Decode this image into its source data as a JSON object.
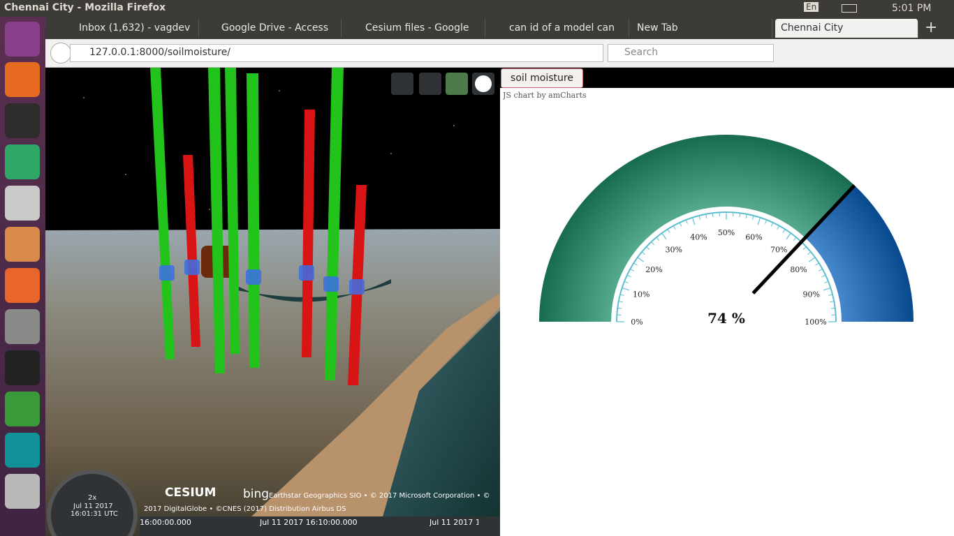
{
  "window": {
    "title": "Chennai City - Mozilla Firefox",
    "keyboard": "En",
    "clock": "5:01 PM"
  },
  "tabs": [
    "Inbox (1,632) - vagdev",
    "Google Drive - Access",
    "Cesium files - Google",
    "can id of a model can",
    "New Tab",
    "Chennai City"
  ],
  "navbar": {
    "url": "127.0.0.1:8000/soilmoisture/",
    "search": "Search"
  },
  "viewer": {
    "logo": "CESIUM",
    "bing": "bing",
    "credits": [
      "Earthstar Geographics SIO • © 2017 Microsoft Corporation • ©",
      "2017 DigitalGlobe • ©CNES (2017) Distribution Airbus DS"
    ],
    "animation": {
      "speed": "2x",
      "date": "Jul 11 2017",
      "time": "16:01:31 UTC"
    },
    "timeline": [
      "16:00:00.000",
      "Jul 11 2017 16:10:00.000",
      "Jul 11 2017 1"
    ]
  },
  "panel": {
    "button": "soil moisture",
    "credit": "JS chart by amCharts"
  },
  "gauge": {
    "type": "gauge",
    "value": 74,
    "value_label": "74 %",
    "range": [
      0,
      100
    ],
    "ticks": [
      {
        "value": 0,
        "label": "0%"
      },
      {
        "value": 10,
        "label": "10%"
      },
      {
        "value": 20,
        "label": "20%"
      },
      {
        "value": 30,
        "label": "30%"
      },
      {
        "value": 40,
        "label": "40%"
      },
      {
        "value": 50,
        "label": "50%"
      },
      {
        "value": 60,
        "label": "60%"
      },
      {
        "value": 70,
        "label": "70%"
      },
      {
        "value": 80,
        "label": "80%"
      },
      {
        "value": 90,
        "label": "90%"
      },
      {
        "value": 100,
        "label": "100%"
      }
    ],
    "minor_ticks_per_interval": 5,
    "bands": [
      {
        "from": 0,
        "to": 74,
        "color": "#1f8f6c"
      },
      {
        "from": 74,
        "to": 100,
        "color": "#0b62bd"
      }
    ],
    "axis_color": "#5bbfd0",
    "needle_color": "#000000"
  }
}
